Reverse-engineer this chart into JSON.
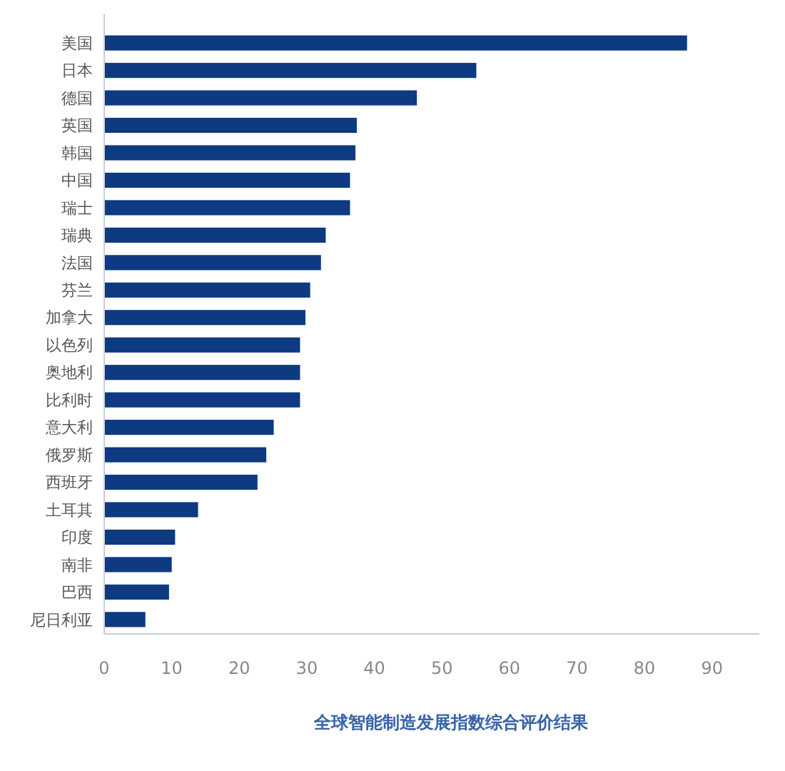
{
  "chart_data": {
    "type": "bar",
    "orientation": "horizontal",
    "xlabel": "全球智能制造发展指数综合评价结果",
    "categories": [
      "美国",
      "日本",
      "德国",
      "英国",
      "韩国",
      "中国",
      "瑞士",
      "瑞典",
      "法国",
      "芬兰",
      "加拿大",
      "以色列",
      "奥地利",
      "比利时",
      "意大利",
      "俄罗斯",
      "西班牙",
      "土耳其",
      "印度",
      "南非",
      "巴西",
      "尼日利亚"
    ],
    "values": [
      86.3,
      55.1,
      46.3,
      37.4,
      37.2,
      36.4,
      36.4,
      32.8,
      32.1,
      30.5,
      29.8,
      29.0,
      29.0,
      29.0,
      25.1,
      24.0,
      22.7,
      13.9,
      10.5,
      10.0,
      9.6,
      6.1
    ],
    "color": "#0d3a80",
    "xlim": [
      0,
      97
    ],
    "xticks": [
      0,
      10,
      20,
      30,
      40,
      50,
      60,
      70,
      80,
      90
    ],
    "grid": false
  }
}
